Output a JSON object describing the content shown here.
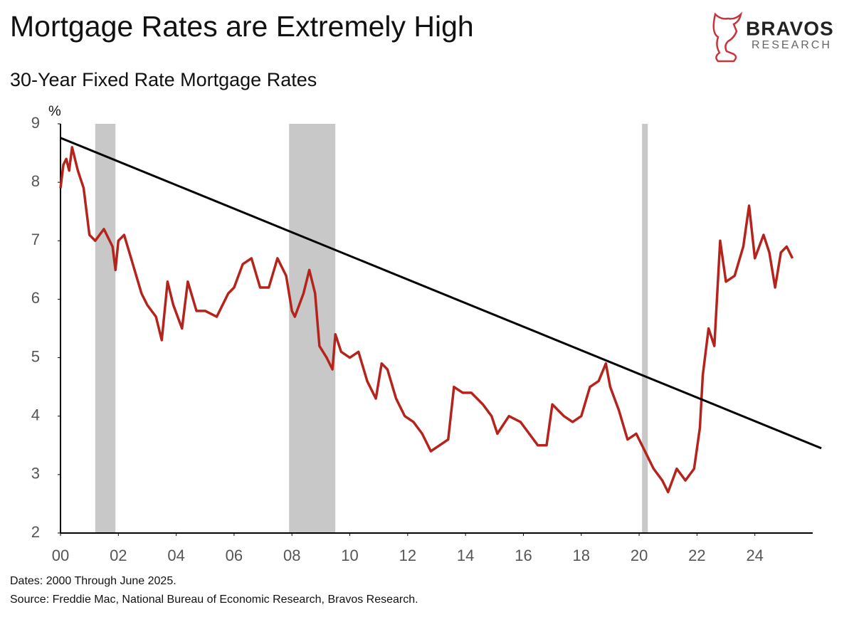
{
  "chart_data": {
    "type": "line",
    "title": "Mortgage Rates are Extremely High",
    "subtitle": "30-Year Fixed Rate Mortgage Rates",
    "y_label": "%",
    "brand": "BRAVOS",
    "brand_sub": "RESEARCH",
    "notes": [
      "Dates: 2000 Through June 2025.",
      "Source: Freddie Mac, National Bureau of Economic Research, Bravos Research."
    ],
    "color": "#b5241c",
    "x": [
      2000.0,
      2000.1,
      2000.2,
      2000.3,
      2000.4,
      2000.6,
      2000.8,
      2001.0,
      2001.2,
      2001.5,
      2001.8,
      2001.9,
      2002.0,
      2002.2,
      2002.5,
      2002.8,
      2003.0,
      2003.3,
      2003.5,
      2003.7,
      2003.9,
      2004.2,
      2004.4,
      2004.7,
      2005.0,
      2005.4,
      2005.8,
      2006.0,
      2006.3,
      2006.6,
      2006.9,
      2007.2,
      2007.5,
      2007.8,
      2008.0,
      2008.1,
      2008.4,
      2008.6,
      2008.8,
      2008.95,
      2009.2,
      2009.4,
      2009.5,
      2009.7,
      2010.0,
      2010.3,
      2010.6,
      2010.9,
      2011.1,
      2011.3,
      2011.6,
      2011.9,
      2012.2,
      2012.5,
      2012.8,
      2013.1,
      2013.4,
      2013.6,
      2013.9,
      2014.2,
      2014.6,
      2014.9,
      2015.1,
      2015.5,
      2015.9,
      2016.2,
      2016.5,
      2016.8,
      2017.0,
      2017.4,
      2017.7,
      2018.0,
      2018.3,
      2018.6,
      2018.85,
      2019.0,
      2019.3,
      2019.6,
      2019.9,
      2020.2,
      2020.5,
      2020.8,
      2021.0,
      2021.3,
      2021.6,
      2021.9,
      2022.1,
      2022.2,
      2022.4,
      2022.6,
      2022.8,
      2023.0,
      2023.3,
      2023.6,
      2023.8,
      2024.0,
      2024.3,
      2024.5,
      2024.7,
      2024.9,
      2025.1,
      2025.3
    ],
    "values": [
      7.9,
      8.3,
      8.4,
      8.2,
      8.6,
      8.2,
      7.9,
      7.1,
      7.0,
      7.2,
      6.9,
      6.5,
      7.0,
      7.1,
      6.6,
      6.1,
      5.9,
      5.7,
      5.3,
      6.3,
      5.9,
      5.5,
      6.3,
      5.8,
      5.8,
      5.7,
      6.1,
      6.2,
      6.6,
      6.7,
      6.2,
      6.2,
      6.7,
      6.4,
      5.8,
      5.7,
      6.1,
      6.5,
      6.1,
      5.2,
      5.0,
      4.8,
      5.4,
      5.1,
      5.0,
      5.1,
      4.6,
      4.3,
      4.9,
      4.8,
      4.3,
      4.0,
      3.9,
      3.7,
      3.4,
      3.5,
      3.6,
      4.5,
      4.4,
      4.4,
      4.2,
      4.0,
      3.7,
      4.0,
      3.9,
      3.7,
      3.5,
      3.5,
      4.2,
      4.0,
      3.9,
      4.0,
      4.5,
      4.6,
      4.9,
      4.5,
      4.1,
      3.6,
      3.7,
      3.4,
      3.1,
      2.9,
      2.7,
      3.1,
      2.9,
      3.1,
      3.8,
      4.7,
      5.5,
      5.2,
      7.0,
      6.3,
      6.4,
      6.9,
      7.6,
      6.7,
      7.1,
      6.8,
      6.2,
      6.8,
      6.9,
      6.7
    ],
    "trendline": {
      "color": "#000000",
      "x": [
        2000,
        2026.3
      ],
      "values": [
        8.76,
        3.45
      ]
    },
    "recessions": [
      [
        2001.2,
        2001.9
      ],
      [
        2007.9,
        2009.5
      ],
      [
        2020.1,
        2020.3
      ]
    ],
    "recession_color": "#c8c8c8",
    "xlim": [
      2000,
      2026
    ],
    "ylim": [
      2,
      9
    ],
    "xticks": [
      {
        "value": 2000,
        "label": "00"
      },
      {
        "value": 2002,
        "label": "02"
      },
      {
        "value": 2004,
        "label": "04"
      },
      {
        "value": 2006,
        "label": "06"
      },
      {
        "value": 2008,
        "label": "08"
      },
      {
        "value": 2010,
        "label": "10"
      },
      {
        "value": 2012,
        "label": "12"
      },
      {
        "value": 2014,
        "label": "14"
      },
      {
        "value": 2016,
        "label": "16"
      },
      {
        "value": 2018,
        "label": "18"
      },
      {
        "value": 2020,
        "label": "20"
      },
      {
        "value": 2022,
        "label": "22"
      },
      {
        "value": 2024,
        "label": "24"
      }
    ],
    "yticks": [
      2,
      3,
      4,
      5,
      6,
      7,
      8,
      9
    ],
    "grid": false
  }
}
